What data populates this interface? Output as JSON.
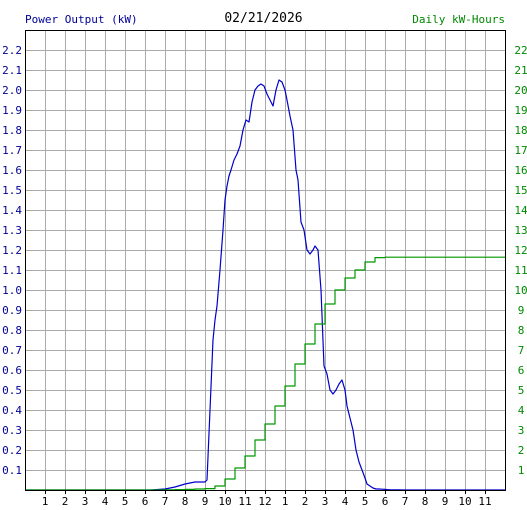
{
  "header": {
    "left_label": "Power Output (kW)",
    "date": "02/21/2026",
    "right_label": "Daily kW-Hours"
  },
  "colors": {
    "power": "#0000cc",
    "energy": "#009900",
    "grid": "#aaaaaa",
    "axis": "#000000",
    "left_label": "#000099",
    "right_label": "#008800"
  },
  "chart_data": {
    "type": "line",
    "xlabel": "",
    "ylabel": "Power Output (kW)",
    "y2label": "Daily kW-Hours",
    "xlim": [
      0,
      24
    ],
    "ylim": [
      0,
      2.3
    ],
    "y2lim": [
      0,
      23
    ],
    "grid": true,
    "x_tick_labels": [
      "1",
      "2",
      "3",
      "4",
      "5",
      "6",
      "7",
      "8",
      "9",
      "10",
      "11",
      "12",
      "1",
      "2",
      "3",
      "4",
      "5",
      "6",
      "7",
      "8",
      "9",
      "10",
      "11"
    ],
    "y_ticks": [
      "0.1",
      "0.2",
      "0.3",
      "0.4",
      "0.5",
      "0.6",
      "0.7",
      "0.8",
      "0.9",
      "1.0",
      "1.1",
      "1.2",
      "1.3",
      "1.4",
      "1.5",
      "1.6",
      "1.7",
      "1.8",
      "1.9",
      "2.0",
      "2.1",
      "2.2"
    ],
    "y2_ticks": [
      "1",
      "2",
      "3",
      "4",
      "5",
      "6",
      "7",
      "8",
      "9",
      "10",
      "11",
      "12",
      "13",
      "14",
      "15",
      "16",
      "17",
      "18",
      "19",
      "20",
      "21",
      "22"
    ],
    "series": [
      {
        "axis": "left",
        "x": [
          0,
          6.3,
          7.0,
          7.5,
          8.0,
          8.5,
          8.8,
          9.0,
          9.1,
          9.25,
          9.4,
          9.5,
          9.6,
          9.75,
          9.9,
          10.0,
          10.1,
          10.2,
          10.3,
          10.45,
          10.6,
          10.75,
          10.9,
          11.05,
          11.2,
          11.35,
          11.5,
          11.65,
          11.8,
          11.95,
          12.1,
          12.25,
          12.4,
          12.55,
          12.7,
          12.85,
          13.0,
          13.1,
          13.25,
          13.4,
          13.55,
          13.65,
          13.8,
          13.95,
          14.1,
          14.25,
          14.4,
          14.5,
          14.65,
          14.8,
          14.95,
          15.1,
          15.25,
          15.4,
          15.55,
          15.7,
          15.85,
          16.0,
          16.1,
          16.25,
          16.4,
          16.55,
          16.7,
          16.85,
          17.0,
          17.1,
          17.25,
          17.4,
          17.55,
          17.7,
          17.85,
          18.0,
          18.1,
          18.3,
          18.5,
          18.7,
          19.0,
          19.3,
          24
        ],
        "y": [
          0,
          0,
          0.005,
          0.015,
          0.03,
          0.04,
          0.04,
          0.04,
          0.05,
          0.4,
          0.75,
          0.85,
          0.92,
          1.1,
          1.3,
          1.45,
          1.52,
          1.57,
          1.6,
          1.65,
          1.68,
          1.72,
          1.8,
          1.85,
          1.84,
          1.94,
          2.0,
          2.02,
          2.03,
          2.02,
          1.98,
          1.95,
          1.92,
          2.0,
          2.05,
          2.04,
          2.0,
          1.95,
          1.87,
          1.8,
          1.6,
          1.55,
          1.34,
          1.3,
          1.2,
          1.18,
          1.2,
          1.22,
          1.2,
          1.0,
          0.62,
          0.58,
          0.5,
          0.48,
          0.5,
          0.53,
          0.55,
          0.5,
          0.42,
          0.36,
          0.3,
          0.2,
          0.14,
          0.1,
          0.06,
          0.03,
          0.02,
          0.01,
          0.005,
          0.005,
          0.004,
          0.003,
          0.002,
          0.001,
          0.001,
          0.001,
          0,
          0,
          0
        ],
        "color": "#0000cc"
      },
      {
        "axis": "right",
        "x": [
          0,
          6.5,
          7.0,
          7.5,
          8.0,
          8.5,
          9.0,
          9.5,
          10.0,
          10.5,
          11.0,
          11.5,
          12.0,
          12.5,
          13.0,
          13.5,
          14.0,
          14.5,
          15.0,
          15.5,
          16.0,
          16.5,
          17.0,
          17.5,
          18.0,
          18.5,
          19.0,
          20.0,
          21.0,
          22.0,
          23.0,
          24.0
        ],
        "y": [
          0,
          0,
          0.01,
          0.02,
          0.03,
          0.05,
          0.07,
          0.2,
          0.55,
          1.1,
          1.7,
          2.5,
          3.3,
          4.2,
          5.2,
          6.3,
          7.3,
          8.3,
          9.3,
          10.0,
          10.6,
          11.0,
          11.4,
          11.62,
          11.64,
          11.64,
          11.64,
          11.64,
          11.64,
          11.64,
          11.64,
          11.64
        ],
        "color": "#009900"
      }
    ]
  }
}
